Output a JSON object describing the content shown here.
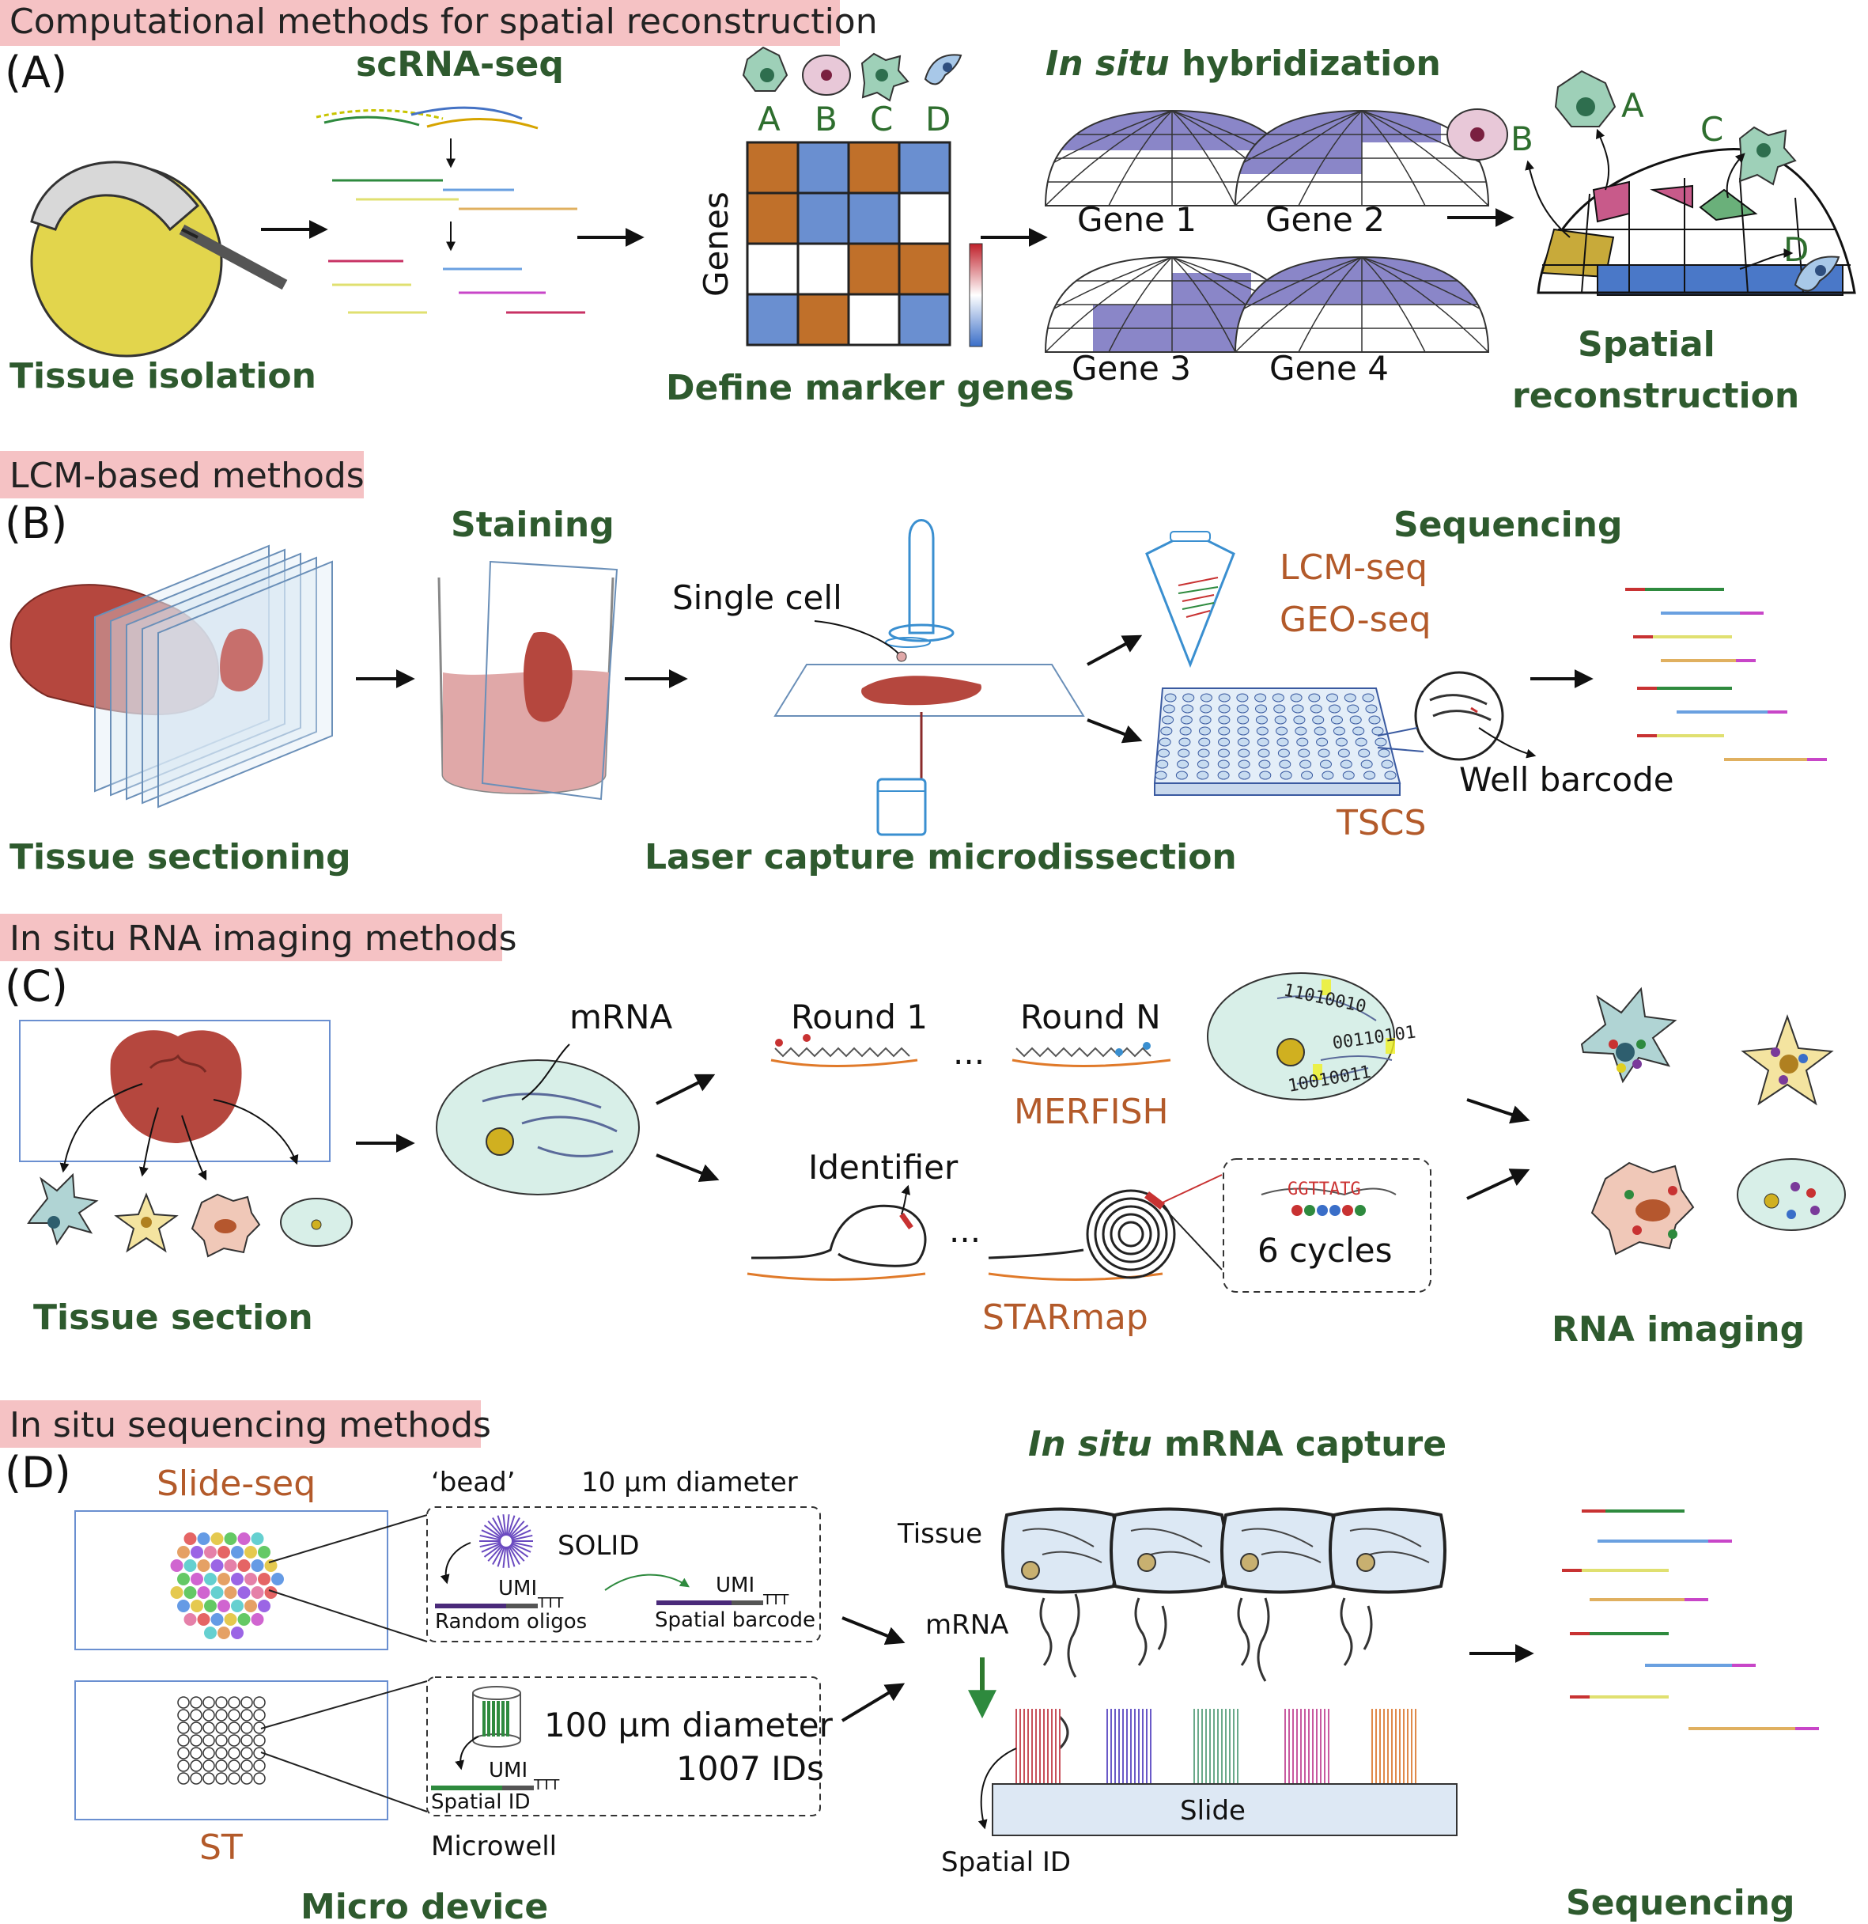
{
  "colors": {
    "banner": "#f5c2c4",
    "green_text": "#2e5a2e",
    "brown_text": "#b35a2a",
    "heat_brown": "#c0702a",
    "heat_blue": "#6a8fd0",
    "purple": "#8a86c8",
    "tissue_red": "#b5473e"
  },
  "panelA": {
    "banner": "Computational methods for spatial reconstruction",
    "letter": "(A)",
    "scrna_title": "scRNA-seq",
    "tissue_label": "Tissue isolation",
    "cell_letters": [
      "A",
      "B",
      "C",
      "D"
    ],
    "genes_axis": "Genes",
    "define_label": "Define marker genes",
    "ish_title_italic": "In situ",
    "ish_title_rest": " hybridization",
    "gene_labels": [
      "Gene 1",
      "Gene 2",
      "Gene 3",
      "Gene 4"
    ],
    "spatial_label_1": "Spatial",
    "spatial_label_2": "reconstruction",
    "recon_letters": [
      "A",
      "B",
      "C",
      "D"
    ]
  },
  "panelB": {
    "banner": "LCM-based methods",
    "letter": "(B)",
    "staining": "Staining",
    "sequencing": "Sequencing",
    "single_cell": "Single cell",
    "lcm_seq": "LCM-seq",
    "geo_seq": "GEO-seq",
    "tscs": "TSCS",
    "well_barcode": "Well barcode",
    "tissue_sectioning": "Tissue sectioning",
    "lcm_label": "Laser capture microdissection"
  },
  "panelC": {
    "banner": "In situ RNA imaging methods",
    "letter": "(C)",
    "mrna": "mRNA",
    "round1": "Round 1",
    "roundN": "Round N",
    "ellipsis": "...",
    "merfish": "MERFISH",
    "identifier": "Identifier",
    "starmap": "STARmap",
    "seq": "GGTTATG",
    "cycles": "6 cycles",
    "bits1": "11010010",
    "bits2": "00110101",
    "bits3": "10010011",
    "tissue_section": "Tissue section",
    "rna_imaging": "RNA imaging"
  },
  "panelD": {
    "banner": "In situ sequencing methods",
    "letter": "(D)",
    "slideseq": "Slide-seq",
    "bead": "‘bead’",
    "bead_diameter": "10 µm diameter",
    "solid": "SOLID",
    "umi": "UMI",
    "random_oligos": "Random oligos",
    "spatial_barcode": "Spatial barcode",
    "ttt": "TTT",
    "st": "ST",
    "well_diameter": "100 µm diameter",
    "ids": "1007 IDs",
    "spatial_id": "Spatial ID",
    "microwell": "Microwell",
    "micro_device": "Micro device",
    "capture_italic": "In situ",
    "capture_rest": " mRNA capture",
    "tissue": "Tissue",
    "mrna": "mRNA",
    "slide": "Slide",
    "spatial_id2": "Spatial ID",
    "sequencing": "Sequencing"
  }
}
